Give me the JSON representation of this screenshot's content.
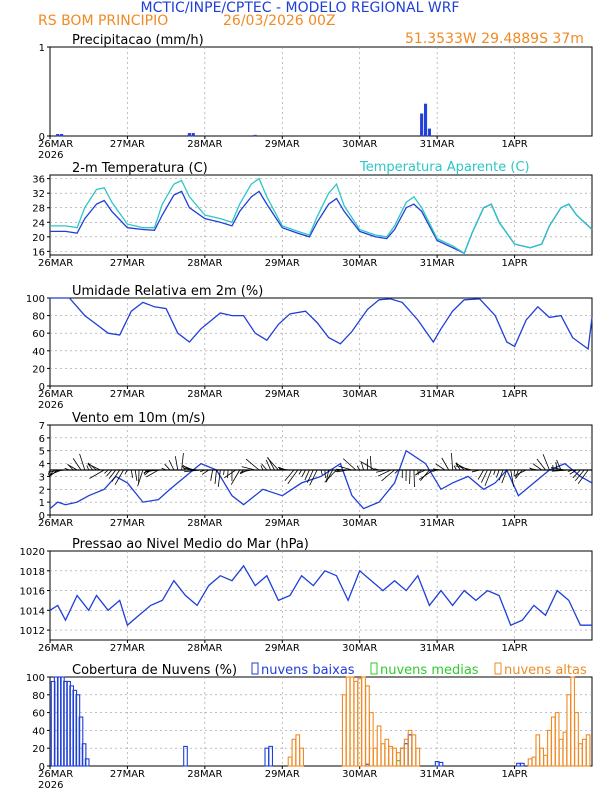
{
  "header": {
    "title": "MCTIC/INPE/CPTEC - MODELO REGIONAL WRF",
    "location": "RS BOM PRINCIPIO",
    "run": "26/03/2026 00Z",
    "coords": "51.3533W 29.4889S 37m",
    "title_color": "#1f3fd8",
    "sub_color": "#f08a24"
  },
  "x_ticks": [
    "26MAR",
    "27MAR",
    "28MAR",
    "29MAR",
    "30MAR",
    "31MAR",
    "1APR"
  ],
  "x_year": "2026",
  "chart_data": [
    {
      "type": "bar",
      "title": "Precipitacao (mm/h)",
      "ylim": [
        0,
        1
      ],
      "yticks": [
        "0",
        "1"
      ],
      "series": [
        {
          "name": "Precipitacao",
          "color": "#1f3fd8",
          "x": [
            0.1,
            0.15,
            1.8,
            1.85,
            2.65,
            4.8,
            4.85,
            4.9
          ],
          "values": [
            0.02,
            0.02,
            0.03,
            0.03,
            0.01,
            0.25,
            0.36,
            0.08
          ]
        }
      ]
    },
    {
      "type": "line",
      "title": "2-m Temperatura (C)",
      "legend": "Temperatura Aparente (C)",
      "ylim": [
        15,
        37
      ],
      "yticks": [
        "16",
        "20",
        "24",
        "28",
        "32",
        "36"
      ],
      "series": [
        {
          "name": "2-m Temperatura (C)",
          "color": "#1f3fd8",
          "x": [
            0,
            0.2,
            0.35,
            0.45,
            0.6,
            0.7,
            0.8,
            1.0,
            1.2,
            1.35,
            1.45,
            1.6,
            1.7,
            1.8,
            2.0,
            2.2,
            2.35,
            2.45,
            2.6,
            2.7,
            2.8,
            3.0,
            3.2,
            3.35,
            3.45,
            3.6,
            3.7,
            3.8,
            4.0,
            4.2,
            4.35,
            4.45,
            4.6,
            4.7,
            4.8,
            5.0,
            5.2,
            5.35,
            5.45,
            5.6,
            5.7,
            5.8,
            6.0,
            6.2,
            6.35,
            6.45,
            6.6,
            6.7,
            6.8,
            7.0
          ],
          "values": [
            21.5,
            21.5,
            21,
            25,
            29,
            30,
            27,
            22.5,
            22,
            21.8,
            26,
            31.5,
            32.5,
            28,
            25,
            24,
            23,
            27,
            31,
            32.5,
            29,
            22.5,
            21,
            20,
            24,
            29,
            30.5,
            27,
            21.5,
            20,
            19.5,
            22,
            28,
            29,
            27,
            19,
            17,
            15.5,
            21,
            28,
            29,
            24,
            18,
            17,
            18,
            23,
            28,
            29,
            26,
            22
          ]
        },
        {
          "name": "Temperatura Aparente (C)",
          "color": "#2ec6c6",
          "x": [
            0,
            0.2,
            0.35,
            0.45,
            0.6,
            0.7,
            0.8,
            1.0,
            1.2,
            1.35,
            1.45,
            1.6,
            1.7,
            1.8,
            2.0,
            2.2,
            2.35,
            2.45,
            2.6,
            2.7,
            2.8,
            3.0,
            3.2,
            3.35,
            3.45,
            3.6,
            3.7,
            3.8,
            4.0,
            4.2,
            4.35,
            4.45,
            4.6,
            4.7,
            4.8,
            5.0,
            5.2,
            5.35,
            5.45,
            5.6,
            5.7,
            5.8,
            6.0,
            6.2,
            6.35,
            6.45,
            6.6,
            6.7,
            6.8,
            7.0
          ],
          "values": [
            23,
            23,
            22.5,
            28,
            33,
            33.5,
            29.5,
            23.5,
            22.5,
            22.5,
            29,
            34.5,
            35.5,
            31,
            26,
            25,
            24,
            29,
            34.5,
            36,
            31,
            23,
            21.5,
            20.5,
            25.5,
            32,
            34.5,
            28.5,
            22,
            20.5,
            20,
            23,
            29.5,
            31,
            28,
            19.5,
            17.5,
            15.5,
            21,
            28,
            29,
            24,
            18,
            17,
            18,
            23,
            28,
            29,
            26,
            22
          ]
        }
      ]
    },
    {
      "type": "line",
      "title": "Umidade Relativa em 2m (%)",
      "ylim": [
        0,
        100
      ],
      "yticks": [
        "0",
        "20",
        "40",
        "60",
        "80",
        "100"
      ],
      "series": [
        {
          "name": "Umidade Relativa",
          "color": "#1f3fd8",
          "x": [
            0,
            0.25,
            0.45,
            0.6,
            0.75,
            0.9,
            1.05,
            1.2,
            1.35,
            1.5,
            1.65,
            1.8,
            1.95,
            2.2,
            2.35,
            2.5,
            2.65,
            2.8,
            2.95,
            3.1,
            3.3,
            3.45,
            3.6,
            3.75,
            3.9,
            4.1,
            4.25,
            4.4,
            4.55,
            4.75,
            4.95,
            5.05,
            5.2,
            5.35,
            5.55,
            5.75,
            5.9,
            6.0,
            6.15,
            6.3,
            6.45,
            6.6,
            6.75,
            6.95,
            7.0
          ],
          "values": [
            100,
            100,
            80,
            70,
            60,
            58,
            85,
            95,
            90,
            88,
            60,
            50,
            65,
            83,
            80,
            80,
            60,
            52,
            70,
            82,
            85,
            72,
            55,
            48,
            62,
            87,
            98,
            99,
            95,
            75,
            50,
            65,
            85,
            98,
            99,
            80,
            50,
            45,
            75,
            90,
            78,
            80,
            55,
            42,
            78
          ]
        }
      ]
    },
    {
      "type": "line",
      "title": "Vento em 10m (m/s)",
      "ylim": [
        0,
        7
      ],
      "yticks": [
        "0",
        "1",
        "2",
        "3",
        "4",
        "5",
        "6",
        "7"
      ],
      "series": [
        {
          "name": "Vento em 10m",
          "color": "#1f3fd8",
          "x": [
            0,
            0.1,
            0.2,
            0.35,
            0.5,
            0.7,
            0.85,
            1.0,
            1.2,
            1.4,
            1.55,
            1.75,
            1.95,
            2.15,
            2.35,
            2.5,
            2.75,
            3.0,
            3.25,
            3.5,
            3.75,
            3.9,
            4.05,
            4.25,
            4.45,
            4.6,
            4.85,
            5.05,
            5.2,
            5.4,
            5.6,
            5.75,
            5.9,
            6.05,
            6.25,
            6.45,
            6.65,
            6.85,
            7.0
          ],
          "values": [
            0.5,
            1.0,
            0.8,
            1.0,
            1.5,
            2.0,
            3.0,
            2.5,
            1.0,
            1.2,
            2.0,
            3.0,
            4.0,
            3.5,
            1.5,
            0.8,
            2.0,
            1.5,
            2.5,
            3.0,
            4.0,
            1.5,
            0.5,
            1.0,
            2.5,
            5.0,
            4.0,
            2.0,
            2.5,
            3.0,
            2.0,
            2.5,
            3.5,
            1.5,
            2.5,
            3.5,
            4.0,
            3.0,
            2.5
          ]
        }
      ]
    },
    {
      "type": "line",
      "title": "Pressao ao Nivel Medio do Mar (hPa)",
      "ylim": [
        1011,
        1020
      ],
      "yticks": [
        "1012",
        "1014",
        "1016",
        "1018",
        "1020"
      ],
      "series": [
        {
          "name": "Pressao",
          "color": "#1f3fd8",
          "x": [
            0,
            0.1,
            0.2,
            0.35,
            0.5,
            0.6,
            0.75,
            0.9,
            1.0,
            1.15,
            1.3,
            1.45,
            1.6,
            1.75,
            1.9,
            2.05,
            2.2,
            2.35,
            2.5,
            2.65,
            2.8,
            2.95,
            3.1,
            3.25,
            3.4,
            3.55,
            3.7,
            3.85,
            4.0,
            4.15,
            4.3,
            4.45,
            4.6,
            4.75,
            4.9,
            5.05,
            5.2,
            5.35,
            5.5,
            5.65,
            5.8,
            5.95,
            6.1,
            6.25,
            6.4,
            6.55,
            6.7,
            6.85,
            7.0
          ],
          "values": [
            1014,
            1014.5,
            1013,
            1015.5,
            1014,
            1015.5,
            1014,
            1015,
            1012.5,
            1013.5,
            1014.5,
            1015,
            1017,
            1015.5,
            1014.5,
            1016.5,
            1017.5,
            1017,
            1018.5,
            1016.5,
            1017.5,
            1015,
            1015.5,
            1017.5,
            1016.5,
            1018,
            1017.5,
            1015,
            1018,
            1017,
            1016,
            1017,
            1016,
            1017.5,
            1014.5,
            1016,
            1014.5,
            1016,
            1015,
            1016,
            1015.5,
            1012.5,
            1013,
            1014.5,
            1013.5,
            1016,
            1015,
            1012.5,
            1012.5
          ]
        }
      ]
    },
    {
      "type": "bar",
      "title": "Cobertura de Nuvens (%)",
      "ylim": [
        0,
        100
      ],
      "yticks": [
        "0",
        "20",
        "40",
        "60",
        "80",
        "100"
      ],
      "series": [
        {
          "name": "nuvens baixas",
          "color": "#1f3fd8",
          "x": [
            0.04,
            0.08,
            0.12,
            0.16,
            0.2,
            0.24,
            0.28,
            0.32,
            0.36,
            0.4,
            0.44,
            0.48,
            1.75,
            2.8,
            2.85,
            4.1,
            4.55,
            4.6,
            4.65,
            5.0,
            5.05,
            6.05,
            6.1
          ],
          "values": [
            95,
            100,
            100,
            100,
            95,
            95,
            90,
            85,
            80,
            55,
            25,
            8,
            22,
            20,
            22,
            2,
            20,
            25,
            35,
            5,
            4,
            3,
            3
          ]
        },
        {
          "name": "nuvens medias",
          "color": "#2ecc2e",
          "x": [
            4.5
          ],
          "values": [
            6
          ]
        },
        {
          "name": "nuvens altas",
          "color": "#f08a24",
          "x": [
            3.1,
            3.15,
            3.2,
            3.25,
            3.8,
            3.85,
            3.9,
            3.95,
            4.0,
            4.05,
            4.1,
            4.15,
            4.2,
            4.25,
            4.3,
            4.35,
            4.4,
            4.45,
            4.5,
            4.55,
            4.6,
            4.65,
            4.7,
            4.75,
            6.2,
            6.25,
            6.3,
            6.35,
            6.4,
            6.45,
            6.5,
            6.55,
            6.6,
            6.65,
            6.7,
            6.75,
            6.8,
            6.85,
            6.9,
            6.95
          ],
          "values": [
            10,
            30,
            35,
            20,
            80,
            100,
            100,
            95,
            98,
            100,
            90,
            60,
            20,
            45,
            25,
            30,
            22,
            20,
            15,
            20,
            30,
            40,
            35,
            20,
            8,
            10,
            35,
            20,
            12,
            40,
            55,
            60,
            30,
            38,
            80,
            100,
            60,
            25,
            30,
            35
          ]
        }
      ]
    }
  ]
}
